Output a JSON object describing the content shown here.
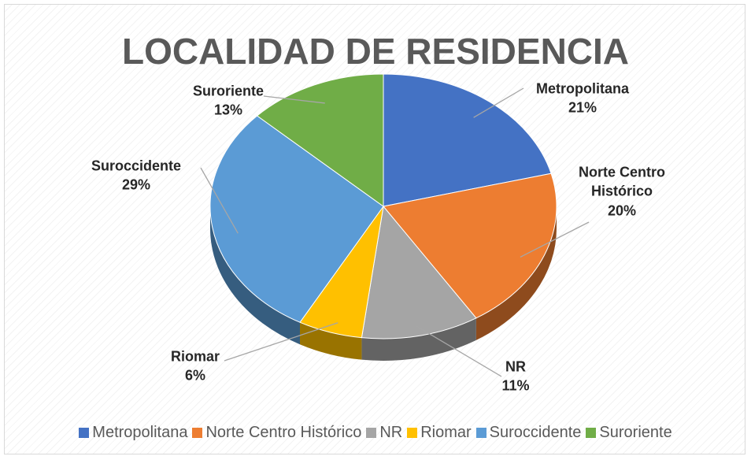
{
  "chart_data": {
    "type": "pie",
    "title": "LOCALIDAD DE RESIDENCIA",
    "categories": [
      "Metropolitana",
      "Norte Centro Histórico",
      "NR",
      "Riomar",
      "Suroccidente",
      "Suroriente"
    ],
    "values": [
      21,
      20,
      11,
      6,
      29,
      13
    ],
    "value_labels": [
      "21%",
      "20%",
      "11%",
      "6%",
      "29%",
      "13%"
    ],
    "colors": [
      "#4472c4",
      "#ed7d31",
      "#a5a5a5",
      "#ffc000",
      "#5b9bd5",
      "#70ad47"
    ],
    "legend": "bottom"
  }
}
